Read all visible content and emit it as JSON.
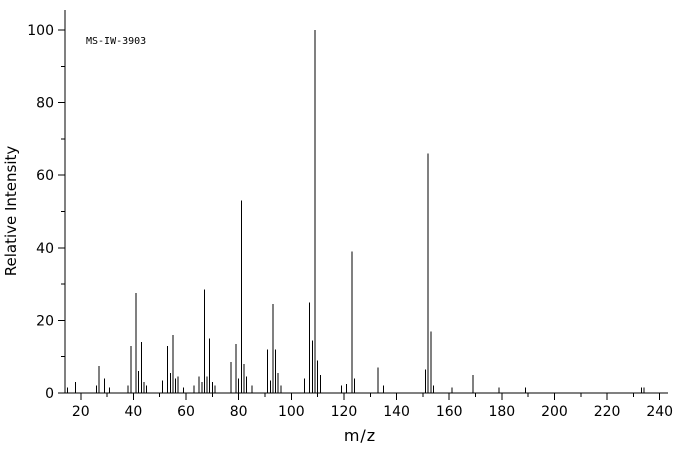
{
  "chart_data": {
    "type": "bar",
    "subtype": "mass-spectrum-stick-plot",
    "title": "MS-IW-3903",
    "xlabel": "m/z",
    "ylabel": "Relative Intensity",
    "xlim": [
      14,
      242
    ],
    "ylim": [
      0,
      100
    ],
    "x_major_ticks": [
      20,
      40,
      60,
      80,
      100,
      120,
      140,
      160,
      180,
      200,
      220,
      240
    ],
    "x_minor_step": 10,
    "y_major_ticks": [
      0,
      20,
      40,
      60,
      80,
      100
    ],
    "y_minor_step": 10,
    "grid": "off",
    "legend": "none",
    "line_color": "#000000",
    "background_color": "#ffffff",
    "peaks": [
      [
        15,
        1.5
      ],
      [
        18,
        3
      ],
      [
        26,
        2
      ],
      [
        27,
        7.5
      ],
      [
        29,
        4
      ],
      [
        31,
        1.5
      ],
      [
        38,
        2
      ],
      [
        39,
        13
      ],
      [
        41,
        27.5
      ],
      [
        42,
        6
      ],
      [
        43,
        14
      ],
      [
        44,
        3
      ],
      [
        45,
        2
      ],
      [
        51,
        3.5
      ],
      [
        53,
        13
      ],
      [
        54,
        5.5
      ],
      [
        55,
        16
      ],
      [
        56,
        4
      ],
      [
        57,
        4.5
      ],
      [
        59,
        1.5
      ],
      [
        63,
        2
      ],
      [
        65,
        4.5
      ],
      [
        66,
        3
      ],
      [
        67,
        28.5
      ],
      [
        68,
        4.5
      ],
      [
        69,
        15
      ],
      [
        70,
        3
      ],
      [
        71,
        2
      ],
      [
        77,
        8.5
      ],
      [
        79,
        13.5
      ],
      [
        80,
        4
      ],
      [
        81,
        53
      ],
      [
        82,
        8
      ],
      [
        83,
        4.5
      ],
      [
        85,
        2
      ],
      [
        91,
        12
      ],
      [
        92,
        3.5
      ],
      [
        93,
        24.5
      ],
      [
        94,
        12
      ],
      [
        95,
        5.5
      ],
      [
        96,
        2
      ],
      [
        105,
        4
      ],
      [
        107,
        25
      ],
      [
        108,
        14.5
      ],
      [
        109,
        100
      ],
      [
        110,
        9
      ],
      [
        111,
        5
      ],
      [
        119,
        2
      ],
      [
        121,
        2.5
      ],
      [
        123,
        39
      ],
      [
        124,
        4
      ],
      [
        133,
        7
      ],
      [
        135,
        2
      ],
      [
        151,
        6.5
      ],
      [
        152,
        66
      ],
      [
        153,
        17
      ],
      [
        154,
        2
      ],
      [
        161,
        1.5
      ],
      [
        169,
        5
      ],
      [
        179,
        1.5
      ],
      [
        189,
        1.5
      ],
      [
        233,
        1.5
      ],
      [
        234,
        1.5
      ]
    ]
  }
}
